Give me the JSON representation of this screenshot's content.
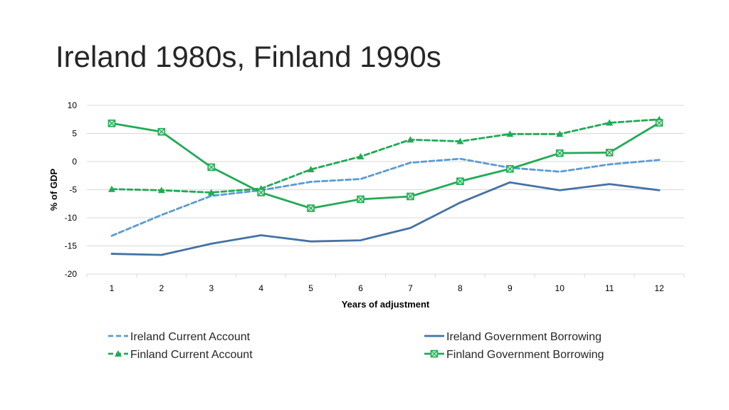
{
  "slide": {
    "title": "Ireland 1980s, Finland 1990s"
  },
  "chart_data": {
    "type": "line",
    "title": "",
    "xlabel": "Years of adjustment",
    "ylabel": "% of GDP",
    "x": [
      1,
      2,
      3,
      4,
      5,
      6,
      7,
      8,
      9,
      10,
      11,
      12
    ],
    "ylim": [
      -20,
      10
    ],
    "yticks": [
      -20,
      -15,
      -10,
      -5,
      0,
      5,
      10
    ],
    "grid": true,
    "legend_placement": "bottom",
    "series": [
      {
        "name": "Ireland Current Account",
        "color": "#5b9bd5",
        "style": "dashed",
        "marker": "none",
        "values": [
          -13.2,
          -9.5,
          -6.1,
          -5.1,
          -3.6,
          -3.1,
          -0.2,
          0.5,
          -1.1,
          -1.8,
          -0.5,
          0.3
        ]
      },
      {
        "name": "Ireland Government Borrowing",
        "color": "#4472a4",
        "style": "solid",
        "marker": "none",
        "values": [
          -16.4,
          -16.6,
          -14.6,
          -13.1,
          -14.2,
          -14.0,
          -11.8,
          -7.3,
          -3.7,
          -5.1,
          -4.0,
          -5.1
        ]
      },
      {
        "name": "Finland Current Account",
        "color": "#21aa55",
        "style": "dashed",
        "marker": "triangle",
        "values": [
          -4.9,
          -5.1,
          -5.5,
          -4.8,
          -1.4,
          0.9,
          3.9,
          3.6,
          4.9,
          4.9,
          6.9,
          7.5
        ]
      },
      {
        "name": "Finland Government Borrowing",
        "color": "#21aa55",
        "style": "solid",
        "marker": "square-x",
        "values": [
          6.8,
          5.3,
          -1.0,
          -5.5,
          -8.3,
          -6.7,
          -6.2,
          -3.5,
          -1.3,
          1.5,
          1.6,
          6.9
        ]
      }
    ]
  }
}
